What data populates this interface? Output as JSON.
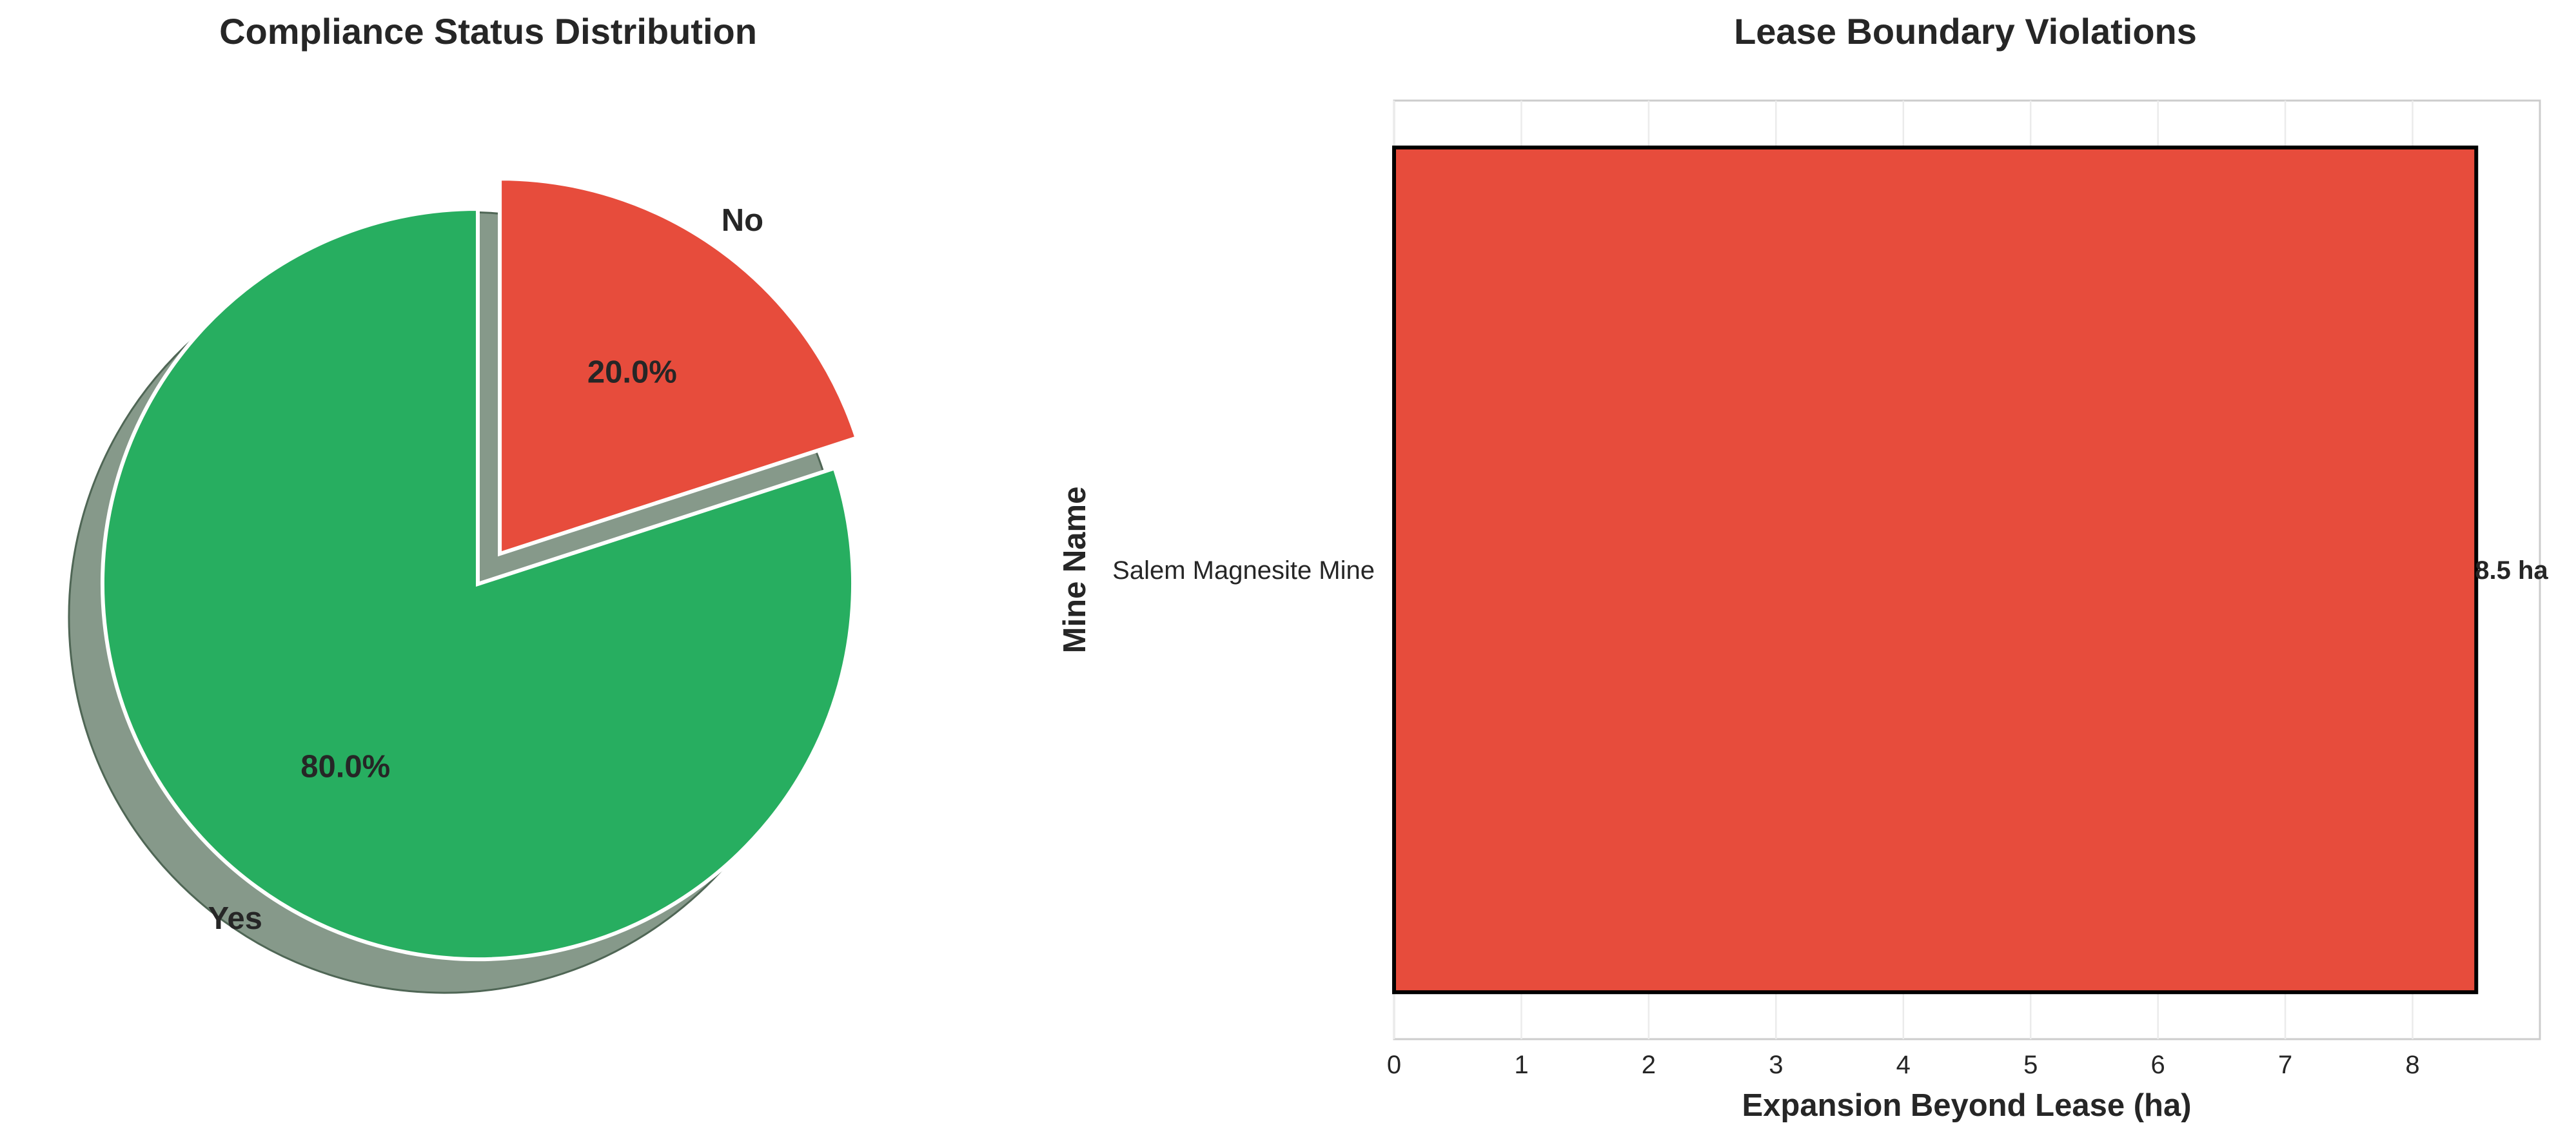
{
  "chart_data": [
    {
      "type": "pie",
      "title": "Compliance Status Distribution",
      "labels": [
        "No",
        "Yes"
      ],
      "values": [
        20.0,
        80.0
      ],
      "value_labels": [
        "20.0%",
        "80.0%"
      ],
      "colors": [
        "#e74c3c",
        "#27ae60"
      ],
      "shadow_color": "#86998a",
      "explode": [
        "No"
      ],
      "start": "top, clockwise"
    },
    {
      "type": "bar",
      "orientation": "horizontal",
      "title": "Lease Boundary Violations",
      "categories": [
        "Salem Magnesite Mine"
      ],
      "values": [
        8.5
      ],
      "value_labels": [
        "8.5 ha"
      ],
      "xlabel": "Expansion Beyond Lease (ha)",
      "ylabel": "Mine Name",
      "xlim": [
        0,
        9
      ],
      "xticks": [
        "0",
        "1",
        "2",
        "3",
        "4",
        "5",
        "6",
        "7",
        "8"
      ],
      "grid": "vertical",
      "bar_color": "#e74c3c",
      "edge_color": "#000000"
    }
  ]
}
